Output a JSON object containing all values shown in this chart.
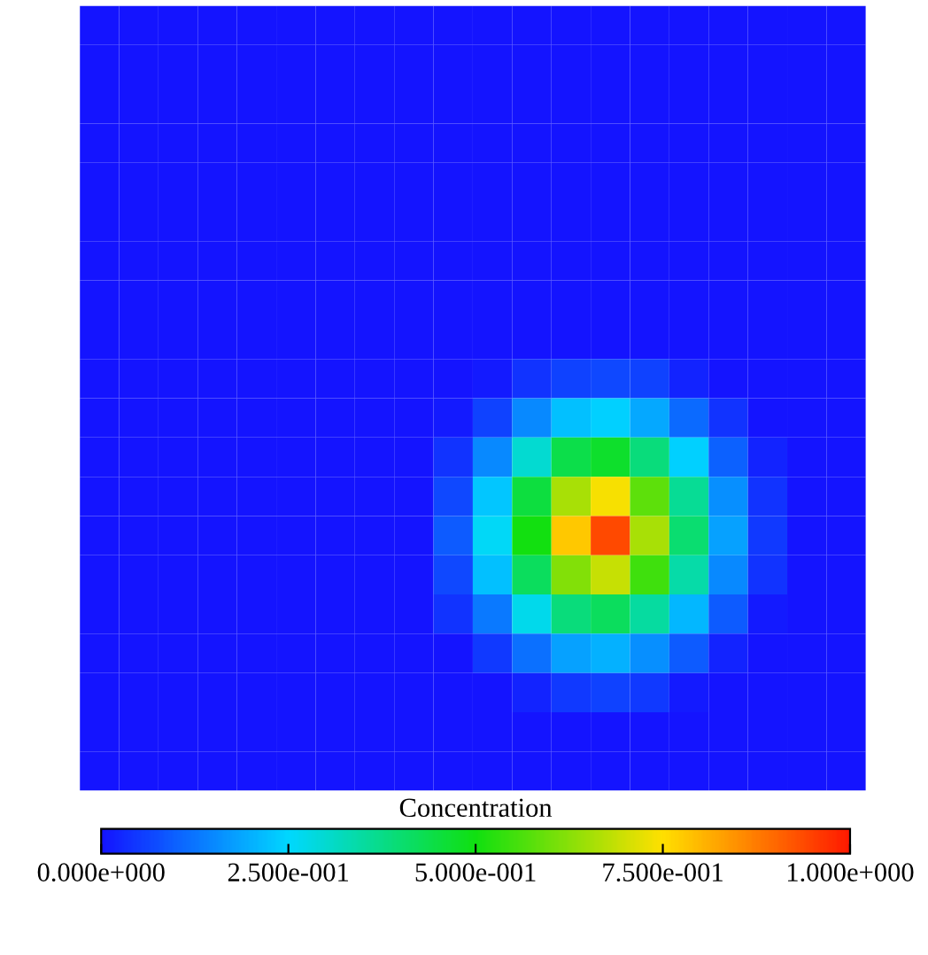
{
  "chart_data": {
    "type": "heatmap",
    "clabel": "Concentration",
    "tick_labels": false,
    "categories": [
      null,
      null,
      null,
      null,
      null,
      null,
      null,
      null,
      null,
      null,
      null,
      null,
      null,
      null,
      null,
      null,
      null,
      null,
      null,
      null
    ],
    "y_categories": [
      null,
      null,
      null,
      null,
      null,
      null,
      null,
      null,
      null,
      null,
      null,
      null,
      null,
      null,
      null,
      null,
      null,
      null,
      null,
      null
    ],
    "clim": [
      0,
      1
    ],
    "cticks": [
      {
        "value": 0,
        "label": "0.000e+000"
      },
      {
        "value": 0.25,
        "label": "2.500e-001"
      },
      {
        "value": 0.5,
        "label": "5.000e-001"
      },
      {
        "value": 0.75,
        "label": "7.500e-001"
      },
      {
        "value": 1,
        "label": "1.000e+000"
      }
    ],
    "cells": [
      [
        0,
        0,
        0,
        0,
        0,
        0,
        0,
        0,
        0,
        0,
        0,
        0,
        0,
        0,
        0,
        0,
        0,
        0,
        0,
        0
      ],
      [
        0,
        0,
        0,
        0,
        0,
        0,
        0,
        0,
        0,
        0,
        0,
        0,
        0,
        0,
        0,
        0,
        0,
        0,
        0,
        0
      ],
      [
        0,
        0,
        0,
        0,
        0,
        0,
        0,
        0,
        0,
        0,
        0,
        0,
        0,
        0,
        0,
        0,
        0,
        0,
        0,
        0
      ],
      [
        0,
        0,
        0,
        0,
        0,
        0,
        0,
        0,
        0,
        0,
        0,
        0,
        0,
        0,
        0,
        0,
        0,
        0,
        0,
        0
      ],
      [
        0,
        0,
        0,
        0,
        0,
        0,
        0,
        0,
        0,
        0,
        0,
        0,
        0,
        0,
        0,
        0,
        0,
        0,
        0,
        0
      ],
      [
        0,
        0,
        0,
        0,
        0,
        0,
        0,
        0,
        0,
        0,
        0,
        0,
        0,
        0,
        0,
        0,
        0,
        0,
        0,
        0
      ],
      [
        0,
        0,
        0,
        0,
        0,
        0,
        0,
        0,
        0,
        0,
        0,
        0,
        0,
        0,
        0,
        0,
        0,
        0,
        0,
        0
      ],
      [
        0,
        0,
        0,
        0,
        0,
        0,
        0,
        0,
        0,
        0,
        0,
        0,
        0,
        0,
        0,
        0,
        0,
        0,
        0,
        0
      ],
      [
        0,
        0,
        0,
        0,
        0,
        0,
        0,
        0,
        0,
        0,
        0,
        0,
        0,
        0,
        0,
        0,
        0,
        0,
        0,
        0
      ],
      [
        0,
        0,
        0,
        0,
        0,
        0,
        0,
        0,
        0,
        0,
        0.01,
        0.04,
        0.06,
        0.07,
        0.06,
        0.02,
        0,
        0,
        0,
        0
      ],
      [
        0,
        0,
        0,
        0,
        0,
        0,
        0,
        0,
        0,
        0.01,
        0.06,
        0.15,
        0.22,
        0.24,
        0.19,
        0.11,
        0.04,
        0,
        0,
        0
      ],
      [
        0,
        0,
        0,
        0,
        0,
        0,
        0,
        0,
        0,
        0.04,
        0.15,
        0.3,
        0.44,
        0.47,
        0.39,
        0.24,
        0.1,
        0.02,
        0,
        0
      ],
      [
        0,
        0,
        0,
        0,
        0,
        0,
        0,
        0,
        0,
        0.07,
        0.23,
        0.45,
        0.66,
        0.74,
        0.58,
        0.36,
        0.16,
        0.04,
        0,
        0
      ],
      [
        0,
        0,
        0,
        0,
        0,
        0,
        0,
        0,
        0,
        0.09,
        0.26,
        0.5,
        0.78,
        0.94,
        0.66,
        0.4,
        0.18,
        0.05,
        0,
        0
      ],
      [
        0,
        0,
        0,
        0,
        0,
        0,
        0,
        0,
        0,
        0.07,
        0.22,
        0.42,
        0.62,
        0.69,
        0.55,
        0.34,
        0.15,
        0.04,
        0,
        0
      ],
      [
        0,
        0,
        0,
        0,
        0,
        0,
        0,
        0,
        0,
        0.04,
        0.13,
        0.27,
        0.39,
        0.42,
        0.35,
        0.21,
        0.09,
        0.01,
        0,
        0
      ],
      [
        0,
        0,
        0,
        0,
        0,
        0,
        0,
        0,
        0,
        0,
        0.05,
        0.12,
        0.18,
        0.2,
        0.16,
        0.09,
        0.02,
        0,
        0,
        0
      ],
      [
        0,
        0,
        0,
        0,
        0,
        0,
        0,
        0,
        0,
        0,
        0,
        0.02,
        0.05,
        0.06,
        0.05,
        0.01,
        0,
        0,
        0,
        0
      ],
      [
        0,
        0,
        0,
        0,
        0,
        0,
        0,
        0,
        0,
        0,
        0,
        0,
        0,
        0,
        0,
        0,
        0,
        0,
        0,
        0
      ],
      [
        0,
        0,
        0,
        0,
        0,
        0,
        0,
        0,
        0,
        0,
        0,
        0,
        0,
        0,
        0,
        0,
        0,
        0,
        0,
        0
      ]
    ]
  }
}
